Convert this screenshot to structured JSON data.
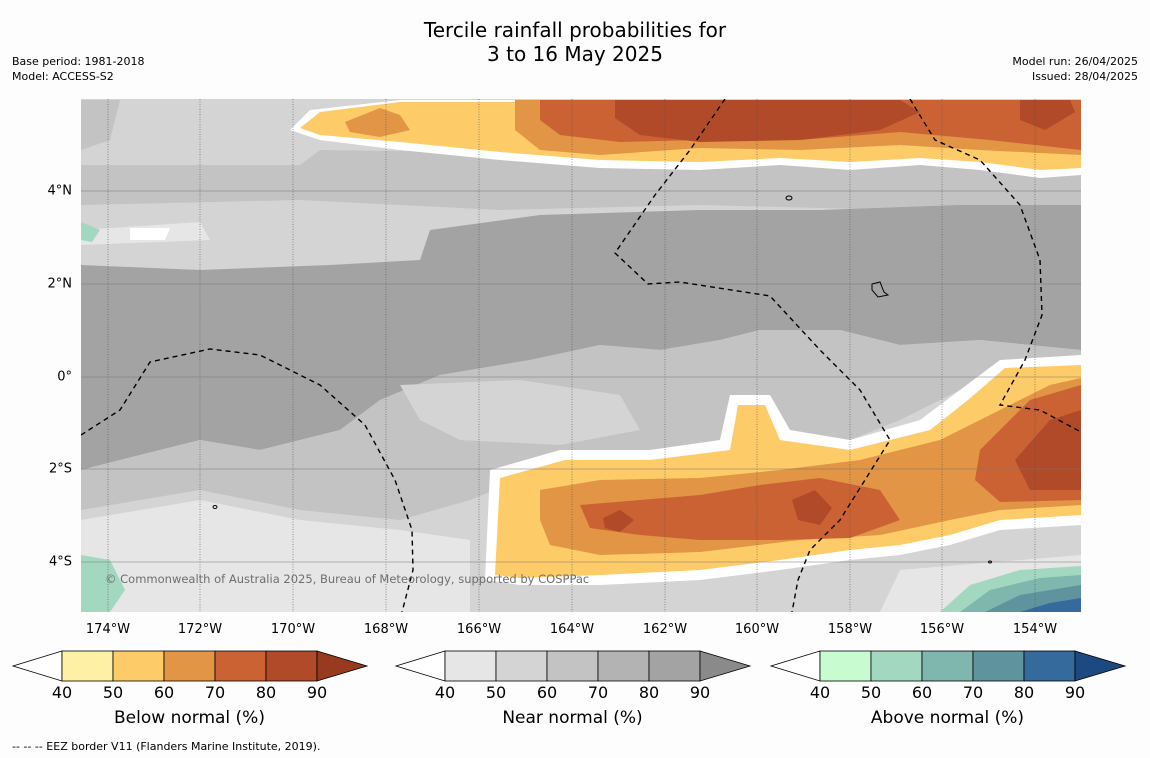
{
  "title_line1": "Tercile rainfall probabilities for",
  "title_line2": "3 to 16 May 2025",
  "meta_left": {
    "base_period": "Base period: 1981-2018",
    "model": "Model: ACCESS-S2"
  },
  "meta_right": {
    "model_run": "Model run: 26/04/2025",
    "issued": "Issued: 28/04/2025"
  },
  "map": {
    "lon_ticks": [
      "174°W",
      "172°W",
      "170°W",
      "168°W",
      "166°W",
      "164°W",
      "162°W",
      "160°W",
      "158°W",
      "156°W",
      "154°W"
    ],
    "lat_ticks": [
      "4°N",
      "2°N",
      "0°",
      "2°S",
      "4°S"
    ],
    "copyright": "© Commonwealth of Australia 2025, Bureau of Meteorology, supported by COSPPac"
  },
  "colorbars": [
    {
      "label": "Below normal (%)",
      "ticks": [
        "40",
        "50",
        "60",
        "70",
        "80",
        "90"
      ],
      "colors": [
        "#fef0a5",
        "#fdcb68",
        "#e19545",
        "#cb6234",
        "#b04a28",
        "#973a20"
      ]
    },
    {
      "label": "Near normal (%)",
      "ticks": [
        "40",
        "50",
        "60",
        "70",
        "80",
        "90"
      ],
      "colors": [
        "#e6e6e6",
        "#d4d4d4",
        "#c3c3c3",
        "#b3b3b3",
        "#a3a3a3",
        "#8a8a8a"
      ]
    },
    {
      "label": "Above normal (%)",
      "ticks": [
        "40",
        "50",
        "60",
        "70",
        "80",
        "90"
      ],
      "colors": [
        "#c8fcd0",
        "#a3d8c0",
        "#7fb6ad",
        "#5f939e",
        "#356a9c",
        "#1c4a80"
      ]
    }
  ],
  "footnote": "-- -- -- EEZ border V11 (Flanders Marine Institute, 2019)."
}
